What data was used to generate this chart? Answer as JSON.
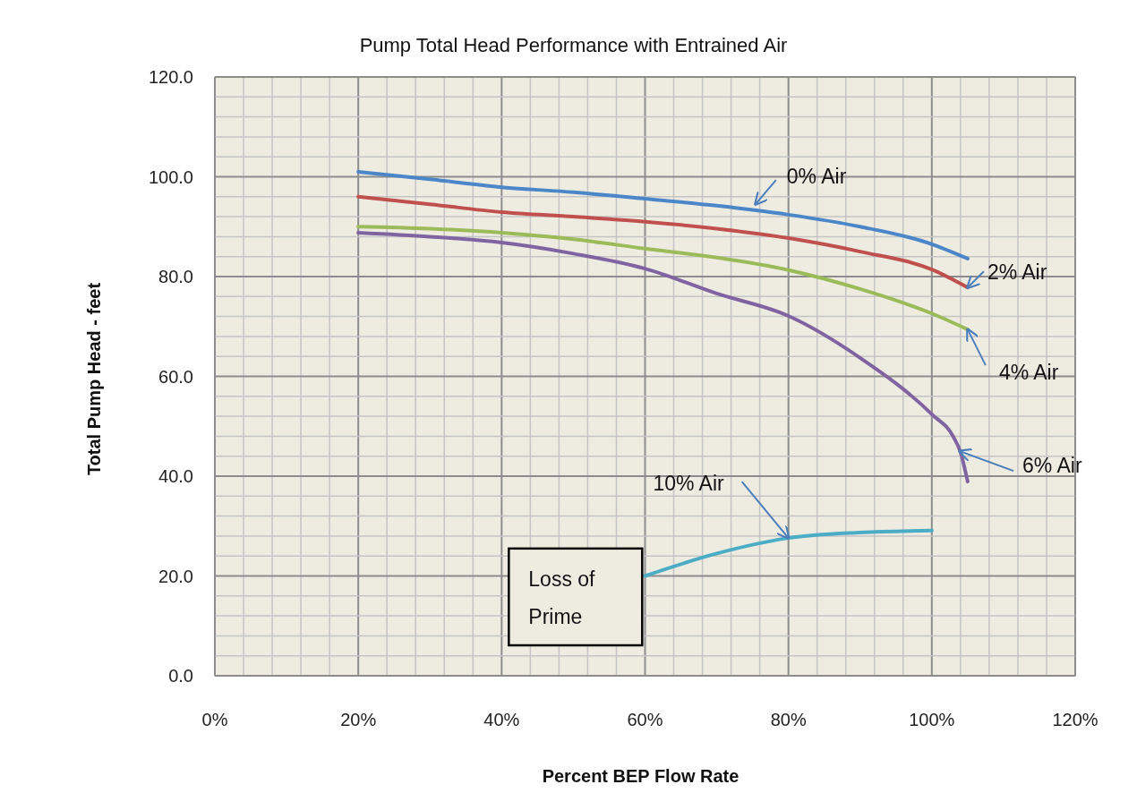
{
  "chart_data": {
    "type": "line",
    "title": "Pump Total Head Performance with Entrained Air",
    "xlabel": "Percent BEP Flow Rate",
    "ylabel": "Total Pump Head - feet",
    "xlim": [
      0,
      120
    ],
    "ylim": [
      0,
      120
    ],
    "xticks": [
      {
        "value": 0,
        "label": "0%"
      },
      {
        "value": 4,
        "label": null
      },
      {
        "value": 8,
        "label": null
      },
      {
        "value": 12,
        "label": null
      },
      {
        "value": 16,
        "label": null
      },
      {
        "value": 20,
        "label": "20%"
      },
      {
        "value": 24,
        "label": null
      },
      {
        "value": 28,
        "label": null
      },
      {
        "value": 32,
        "label": null
      },
      {
        "value": 36,
        "label": null
      },
      {
        "value": 40,
        "label": "40%"
      },
      {
        "value": 44,
        "label": null
      },
      {
        "value": 48,
        "label": null
      },
      {
        "value": 52,
        "label": null
      },
      {
        "value": 56,
        "label": null
      },
      {
        "value": 60,
        "label": "60%"
      },
      {
        "value": 64,
        "label": null
      },
      {
        "value": 68,
        "label": null
      },
      {
        "value": 72,
        "label": null
      },
      {
        "value": 76,
        "label": null
      },
      {
        "value": 80,
        "label": "80%"
      },
      {
        "value": 84,
        "label": null
      },
      {
        "value": 88,
        "label": null
      },
      {
        "value": 92,
        "label": null
      },
      {
        "value": 96,
        "label": null
      },
      {
        "value": 100,
        "label": "100%"
      },
      {
        "value": 104,
        "label": null
      },
      {
        "value": 108,
        "label": null
      },
      {
        "value": 112,
        "label": null
      },
      {
        "value": 116,
        "label": null
      },
      {
        "value": 120,
        "label": "120%"
      }
    ],
    "yticks": [
      {
        "value": 0,
        "label": "0.0"
      },
      {
        "value": 4,
        "label": null
      },
      {
        "value": 8,
        "label": null
      },
      {
        "value": 12,
        "label": null
      },
      {
        "value": 16,
        "label": null
      },
      {
        "value": 20,
        "label": "20.0"
      },
      {
        "value": 24,
        "label": null
      },
      {
        "value": 28,
        "label": null
      },
      {
        "value": 32,
        "label": null
      },
      {
        "value": 36,
        "label": null
      },
      {
        "value": 40,
        "label": "40.0"
      },
      {
        "value": 44,
        "label": null
      },
      {
        "value": 48,
        "label": null
      },
      {
        "value": 52,
        "label": null
      },
      {
        "value": 56,
        "label": null
      },
      {
        "value": 60,
        "label": "60.0"
      },
      {
        "value": 64,
        "label": null
      },
      {
        "value": 68,
        "label": null
      },
      {
        "value": 72,
        "label": null
      },
      {
        "value": 76,
        "label": null
      },
      {
        "value": 80,
        "label": "80.0"
      },
      {
        "value": 84,
        "label": null
      },
      {
        "value": 88,
        "label": null
      },
      {
        "value": 92,
        "label": null
      },
      {
        "value": 96,
        "label": null
      },
      {
        "value": 100,
        "label": "100.0"
      },
      {
        "value": 104,
        "label": null
      },
      {
        "value": 108,
        "label": null
      },
      {
        "value": 112,
        "label": null
      },
      {
        "value": 116,
        "label": null
      },
      {
        "value": 120,
        "label": "120.0"
      }
    ],
    "grid": true,
    "series": [
      {
        "color": "#4a86c8",
        "x": [
          20,
          30,
          40,
          50,
          60,
          70,
          80,
          90,
          100,
          105
        ],
        "values": [
          101,
          99.5,
          97.9,
          96.9,
          95.6,
          94.2,
          92.4,
          90,
          86.5,
          83.6
        ]
      },
      {
        "color": "#c0504d",
        "x": [
          20,
          30,
          40,
          50,
          60,
          70,
          80,
          90,
          100,
          105
        ],
        "values": [
          96,
          94.5,
          92.9,
          92,
          91,
          89.6,
          87.7,
          85,
          81.4,
          77.8
        ]
      },
      {
        "color": "#9bbb59",
        "x": [
          20,
          30,
          40,
          50,
          60,
          70,
          80,
          90,
          100,
          105
        ],
        "values": [
          90,
          89.6,
          88.8,
          87.5,
          85.6,
          83.8,
          81.3,
          77.5,
          72.6,
          69.4
        ]
      },
      {
        "color": "#8064a2",
        "x": [
          20,
          30,
          40,
          50,
          60,
          70,
          80,
          90,
          100,
          103,
          104,
          105
        ],
        "values": [
          88.8,
          88,
          86.8,
          84.6,
          81.6,
          76.6,
          72.1,
          63.7,
          52.4,
          47.9,
          44.8,
          38.9
        ]
      },
      {
        "color": "#4bacc6",
        "x": [
          60,
          70,
          80,
          90,
          100
        ],
        "values": [
          20,
          24.5,
          27.6,
          28.7,
          29.1
        ]
      }
    ],
    "annotations": [
      {
        "text": "0% Air",
        "x": 75.4,
        "y": 94.5
      },
      {
        "text": "2% Air",
        "x": 105,
        "y": 77.8
      },
      {
        "text": "4% Air",
        "x": 105,
        "y": 69.4
      },
      {
        "text": "6% Air",
        "x": 103.9,
        "y": 45
      },
      {
        "text": "10% Air",
        "x": 80,
        "y": 27.6
      },
      "Loss of Prime"
    ]
  }
}
